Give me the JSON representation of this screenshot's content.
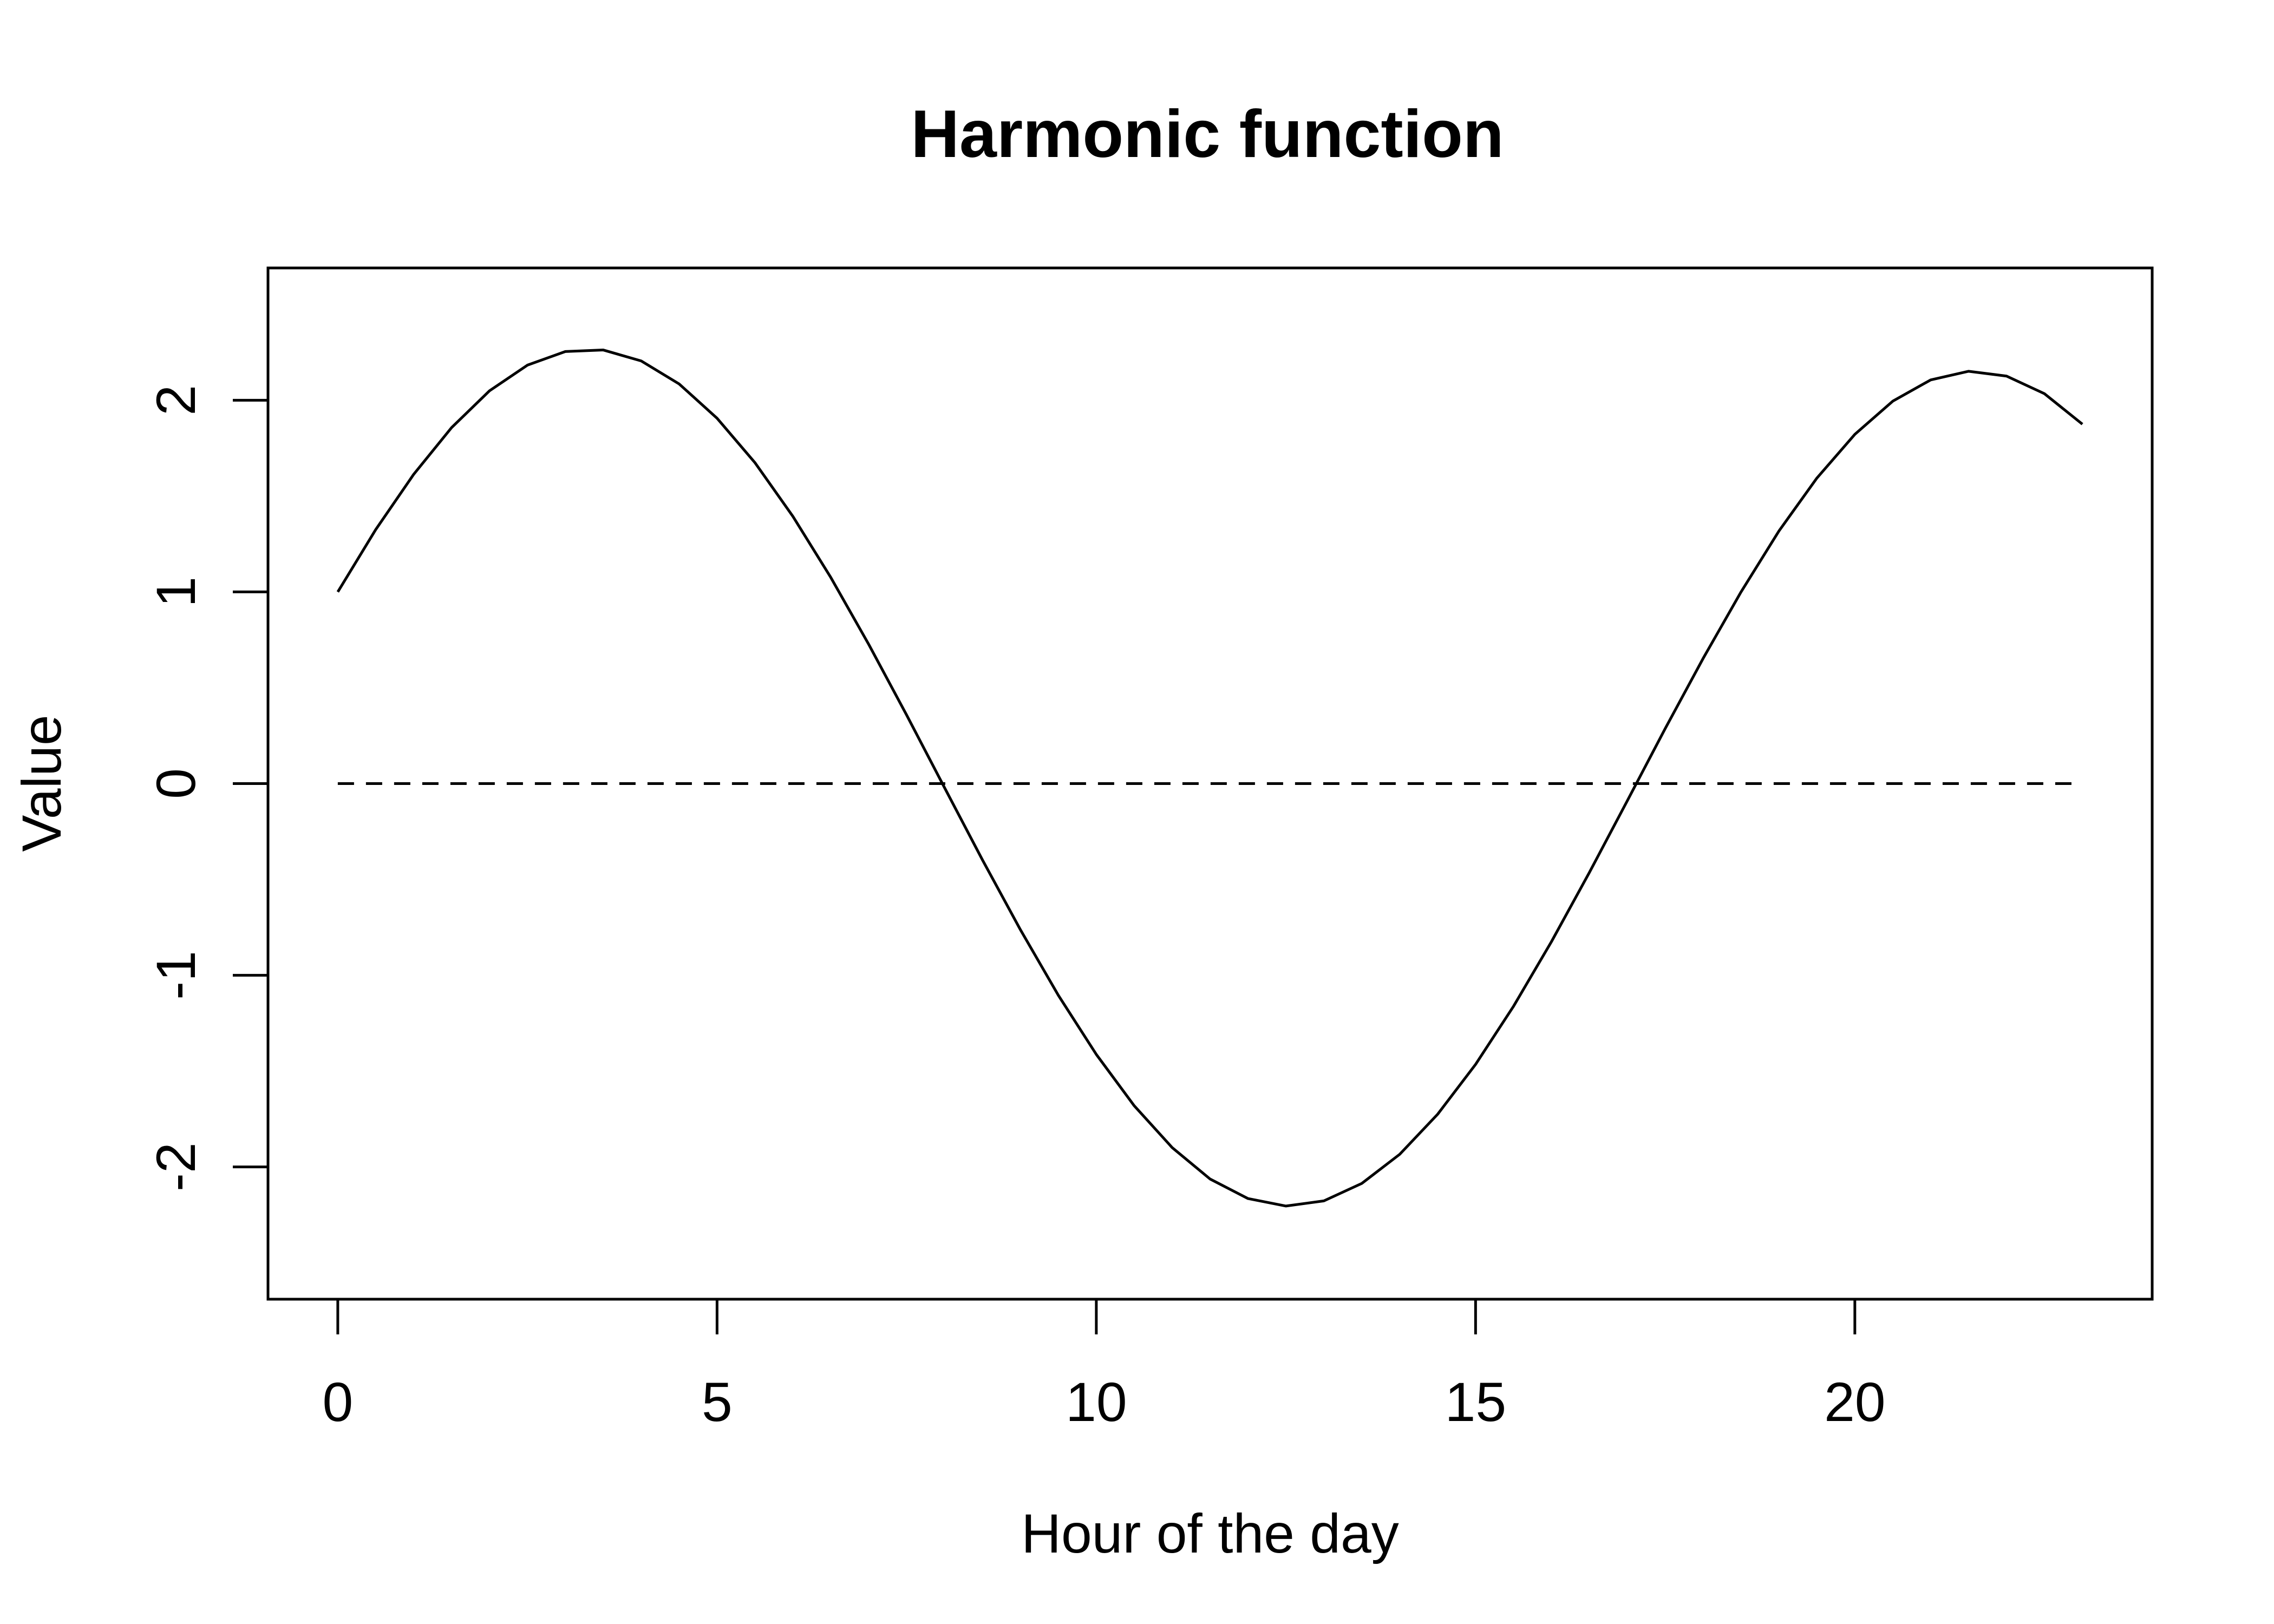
{
  "chart_data": {
    "type": "line",
    "title": "Harmonic function",
    "xlabel": "Hour of the day",
    "ylabel": "Value",
    "xlim": [
      -0.92,
      23.92
    ],
    "ylim": [
      -2.69,
      2.69
    ],
    "xticks": [
      0,
      5,
      10,
      15,
      20
    ],
    "xtick_labels": [
      "0",
      "5",
      "10",
      "15",
      "20"
    ],
    "yticks": [
      -2,
      -1,
      0,
      1,
      2
    ],
    "ytick_labels": [
      "-2",
      "-1",
      "0",
      "1",
      "2"
    ],
    "grid": false,
    "legend": "none",
    "colors": {
      "line": "#000000",
      "axis": "#000000",
      "background": "#ffffff"
    },
    "series": [
      {
        "style": "solid",
        "x": [
          0,
          0.5,
          1,
          1.5,
          2,
          2.5,
          3,
          3.5,
          4,
          4.5,
          5,
          5.5,
          6,
          6.5,
          7,
          7.5,
          8,
          8.5,
          9,
          9.5,
          10,
          10.5,
          11,
          11.5,
          12,
          12.5,
          13,
          13.5,
          14,
          14.5,
          15,
          15.5,
          16,
          16.5,
          17,
          17.5,
          18,
          18.5,
          19,
          19.5,
          20,
          20.5,
          21,
          21.5,
          22,
          22.5,
          23
        ],
        "y": [
          1.0,
          1.325,
          1.613,
          1.857,
          2.049,
          2.183,
          2.254,
          2.262,
          2.205,
          2.085,
          1.906,
          1.674,
          1.394,
          1.075,
          0.726,
          0.357,
          -0.022,
          -0.399,
          -0.763,
          -1.105,
          -1.413,
          -1.681,
          -1.899,
          -2.063,
          -2.165,
          -2.204,
          -2.177,
          -2.086,
          -1.934,
          -1.725,
          -1.465,
          -1.162,
          -0.825,
          -0.464,
          -0.09,
          0.287,
          0.653,
          1.0,
          1.318,
          1.594,
          1.822,
          1.995,
          2.106,
          2.151,
          2.126,
          2.034,
          1.875
        ]
      },
      {
        "style": "dashed",
        "x": [
          0,
          23
        ],
        "y": [
          0,
          0
        ]
      }
    ]
  }
}
